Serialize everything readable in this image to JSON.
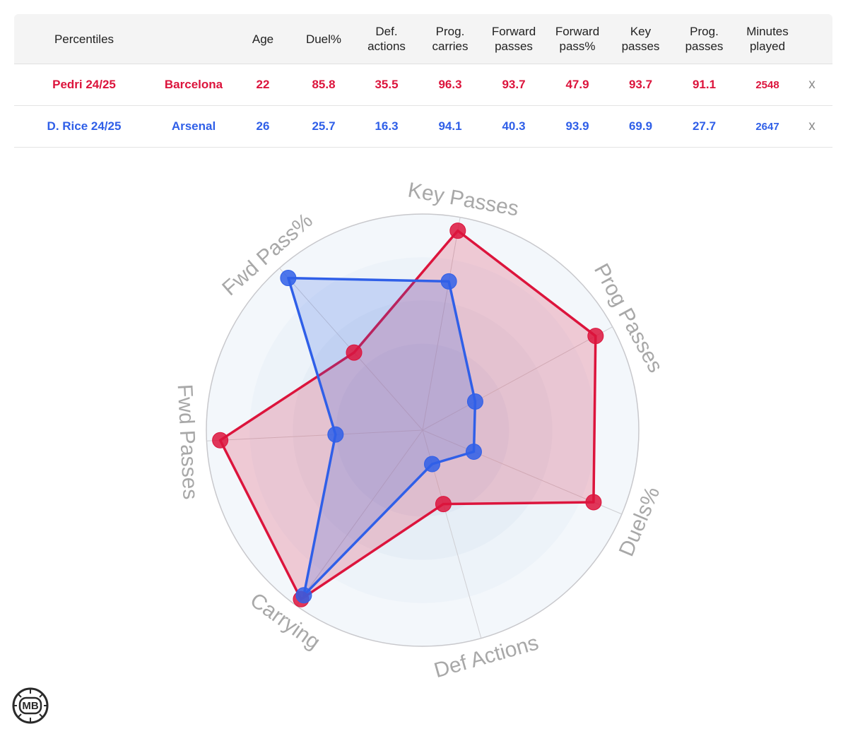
{
  "table": {
    "headers": [
      "Percentiles",
      "",
      "Age",
      "Duel%",
      "Def.\nactions",
      "Prog.\ncarries",
      "Forward\npasses",
      "Forward\npass%",
      "Key\npasses",
      "Prog.\npasses",
      "Minutes\nplayed"
    ],
    "rows": [
      {
        "player": "Pedri 24/25",
        "team": "Barcelona",
        "age": "22",
        "duel": "85.8",
        "def_actions": "35.5",
        "prog_carries": "96.3",
        "forward_passes": "93.7",
        "forward_pass_pct": "47.9",
        "key_passes": "93.7",
        "prog_passes": "91.1",
        "minutes": "2548",
        "remove": "x",
        "color": "#dc143c"
      },
      {
        "player": "D. Rice 24/25",
        "team": "Arsenal",
        "age": "26",
        "duel": "25.7",
        "def_actions": "16.3",
        "prog_carries": "94.1",
        "forward_passes": "40.3",
        "forward_pass_pct": "93.9",
        "key_passes": "69.9",
        "prog_passes": "27.7",
        "minutes": "2647",
        "remove": "x",
        "color": "#2f5fe8"
      }
    ]
  },
  "chart_data": {
    "type": "radar",
    "axes": [
      "Key Passes",
      "Prog Passes",
      "Duels%",
      "Def Actions",
      "Carrying",
      "Fwd Passes",
      "Fwd Pass%"
    ],
    "range": [
      0,
      100
    ],
    "series": [
      {
        "name": "Pedri 24/25",
        "values": [
          93.7,
          91.1,
          85.8,
          35.5,
          96.3,
          93.7,
          47.9
        ],
        "color": "#dc143c"
      },
      {
        "name": "D. Rice 24/25",
        "values": [
          69.9,
          27.7,
          25.7,
          16.3,
          94.1,
          40.3,
          93.9
        ],
        "color": "#2f5fe8"
      }
    ]
  },
  "logo": {
    "text": "MB",
    "icon": "mb-ball-logo"
  }
}
